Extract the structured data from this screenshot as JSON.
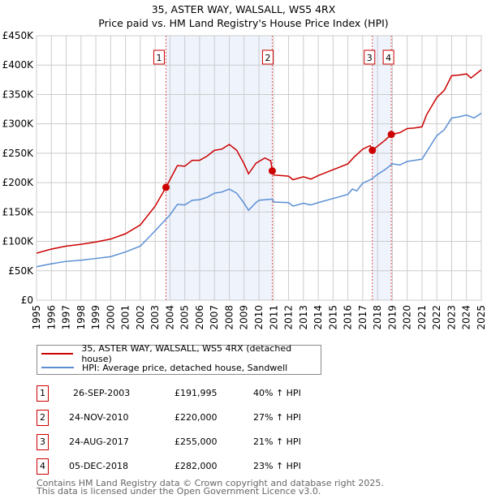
{
  "title": "35, ASTER WAY, WALSALL, WS5 4RX",
  "subtitle": "Price paid vs. HM Land Registry's House Price Index (HPI)",
  "chart_data": {
    "type": "line",
    "xlim": [
      1995,
      2025
    ],
    "ylim": [
      0,
      450000
    ],
    "yticks": [
      0,
      50000,
      100000,
      150000,
      200000,
      250000,
      300000,
      350000,
      400000,
      450000
    ],
    "ytick_labels": [
      "£0",
      "£50K",
      "£100K",
      "£150K",
      "£200K",
      "£250K",
      "£300K",
      "£350K",
      "£400K",
      "£450K"
    ],
    "xticks": [
      1995,
      1996,
      1997,
      1998,
      1999,
      2000,
      2001,
      2002,
      2003,
      2004,
      2005,
      2006,
      2007,
      2008,
      2009,
      2010,
      2011,
      2012,
      2013,
      2014,
      2015,
      2016,
      2017,
      2018,
      2019,
      2020,
      2021,
      2022,
      2023,
      2024,
      2025
    ],
    "grid": true,
    "series": [
      {
        "name": "35, ASTER WAY, WALSALL, WS5 4RX (detached house)",
        "color": "#cc0000",
        "x": [
          1995,
          1996,
          1997,
          1998,
          1999,
          2000,
          2001,
          2002,
          2003,
          2003.73,
          2004.5,
          2005,
          2005.5,
          2006,
          2006.5,
          2007,
          2007.5,
          2008,
          2008.5,
          2009,
          2009.3,
          2009.8,
          2010.4,
          2010.8,
          2010.9,
          2011,
          2012,
          2012.3,
          2013,
          2013.5,
          2014,
          2015,
          2016,
          2016.4,
          2017,
          2017.5,
          2017.65,
          2018,
          2018.5,
          2018.93,
          2019.5,
          2020,
          2020.5,
          2021,
          2021.3,
          2022,
          2022.5,
          2023,
          2023.5,
          2024,
          2024.3,
          2025
        ],
        "y": [
          80000,
          87000,
          92000,
          95000,
          99000,
          104000,
          113000,
          128000,
          160000,
          192000,
          229000,
          228000,
          238000,
          238000,
          245000,
          255000,
          257000,
          265000,
          255000,
          232000,
          215000,
          233000,
          242000,
          237000,
          220000,
          213000,
          211000,
          205000,
          210000,
          206000,
          212000,
          222000,
          232000,
          243000,
          257000,
          263000,
          255000,
          262000,
          272000,
          282000,
          285000,
          292000,
          293000,
          295000,
          315000,
          345000,
          357000,
          382000,
          383000,
          385000,
          378000,
          392000
        ]
      },
      {
        "name": "HPI: Average price, detached house, Sandwell",
        "color": "#5b8fd4",
        "x": [
          1995,
          1996,
          1997,
          1998,
          1999,
          2000,
          2001,
          2002,
          2003,
          2003.7,
          2004,
          2004.5,
          2005,
          2005.5,
          2006,
          2006.5,
          2007,
          2007.5,
          2008,
          2008.5,
          2009,
          2009.3,
          2009.8,
          2010,
          2010.9,
          2011,
          2012,
          2012.3,
          2013,
          2013.5,
          2014,
          2015,
          2016,
          2016.3,
          2016.6,
          2017,
          2017.6,
          2018,
          2018.5,
          2019,
          2019.5,
          2020,
          2020.5,
          2021,
          2021.5,
          2022,
          2022.5,
          2023,
          2023.5,
          2024,
          2024.5,
          2025
        ],
        "y": [
          57000,
          62000,
          66000,
          68000,
          71000,
          74000,
          82000,
          92000,
          118000,
          137000,
          145000,
          163000,
          162000,
          170000,
          171000,
          175000,
          182000,
          184000,
          189000,
          182000,
          165000,
          153000,
          166000,
          170000,
          172000,
          167000,
          166000,
          160000,
          165000,
          162000,
          166000,
          173000,
          180000,
          189000,
          186000,
          199000,
          206000,
          214000,
          222000,
          232000,
          230000,
          236000,
          238000,
          240000,
          260000,
          280000,
          290000,
          310000,
          312000,
          315000,
          310000,
          318000
        ]
      }
    ],
    "sales": [
      {
        "label": "1",
        "x": 2003.73,
        "y": 191995,
        "date": "26-SEP-2003",
        "price": "£191,995",
        "hpi": "40% ↑ HPI"
      },
      {
        "label": "2",
        "x": 2010.9,
        "y": 220000,
        "date": "24-NOV-2010",
        "price": "£220,000",
        "hpi": "27% ↑ HPI"
      },
      {
        "label": "3",
        "x": 2017.65,
        "y": 255000,
        "date": "24-AUG-2017",
        "price": "£255,000",
        "hpi": "21% ↑ HPI"
      },
      {
        "label": "4",
        "x": 2018.93,
        "y": 282000,
        "date": "05-DEC-2018",
        "price": "£282,000",
        "hpi": "23% ↑ HPI"
      }
    ],
    "legend": "below"
  },
  "footer": [
    "Contains HM Land Registry data © Crown copyright and database right 2025.",
    "This data is licensed under the Open Government Licence v3.0."
  ]
}
